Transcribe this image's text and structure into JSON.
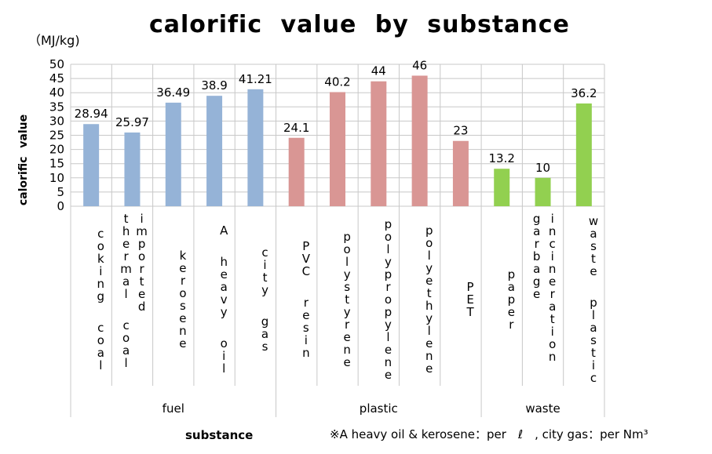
{
  "chart_data": {
    "type": "bar",
    "title": "calorific value by substance",
    "unit": "（MJ/kg)",
    "ylabel": "calorific value",
    "xlabel": "substance",
    "ylim": [
      0,
      50
    ],
    "yticks": [
      "0",
      "5",
      "10",
      "15",
      "20",
      "25",
      "30",
      "35",
      "40",
      "45",
      "50"
    ],
    "grid": true,
    "categories": [
      "coking coal",
      "imported thermal coal",
      "kerosene",
      "A heavy oil",
      "city gas",
      "PVC resin",
      "polystyrene",
      "polypropylene",
      "polyethylene",
      "PET",
      "paper",
      "incineration garbage",
      "waste plastic"
    ],
    "groups": [
      {
        "name": "fuel",
        "count": 5,
        "color": "#95b3d7"
      },
      {
        "name": "plastic",
        "count": 5,
        "color": "#d99694"
      },
      {
        "name": "waste",
        "count": 3,
        "color": "#92d050"
      }
    ],
    "values": [
      28.94,
      25.97,
      36.49,
      38.9,
      41.21,
      24.1,
      40.2,
      44,
      46,
      23,
      13.2,
      10,
      36.2
    ],
    "value_labels": [
      "28.94",
      "25.97",
      "36.49",
      "38.9",
      "41.21",
      "24.1",
      "40.2",
      "44",
      "46",
      "23",
      "13.2",
      "10",
      "36.2"
    ],
    "note": "※A heavy oil & kerosene：per　ℓ　, city gas：per Nm³"
  }
}
